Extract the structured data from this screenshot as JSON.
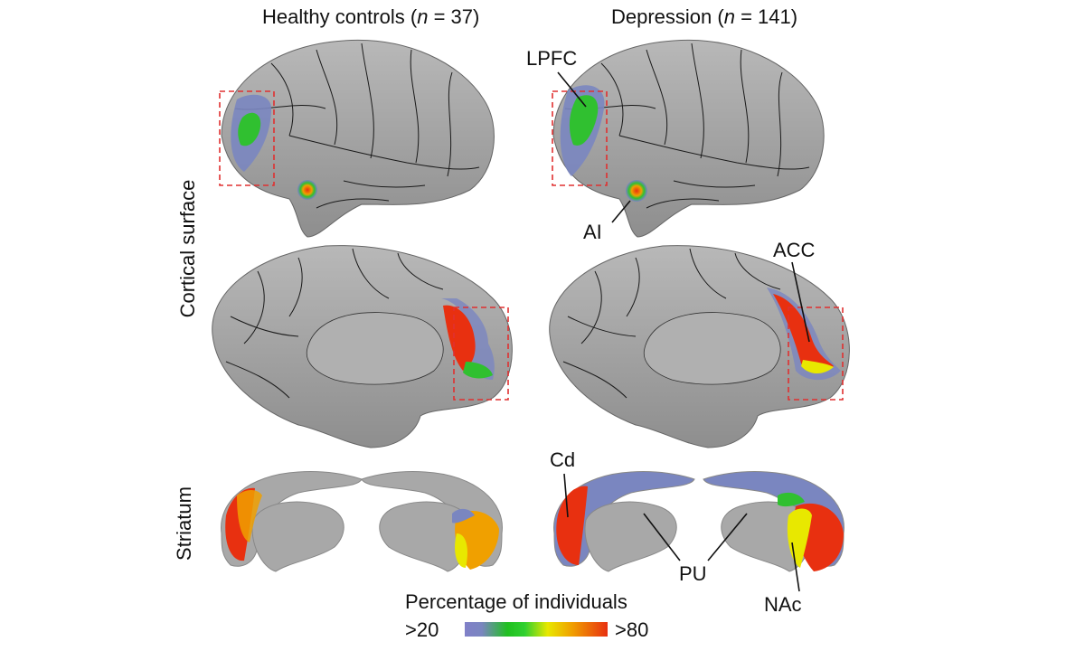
{
  "columns": {
    "left": {
      "label": "Healthy controls",
      "n_prefix": "(",
      "n_symbol": "n",
      "n_value": " = 37)"
    },
    "right": {
      "label": "Depression",
      "n_prefix": "(",
      "n_symbol": "n",
      "n_value": " = 141)"
    }
  },
  "row_labels": {
    "cortical": "Cortical surface",
    "striatum": "Striatum"
  },
  "region_labels": {
    "lpfc": "LPFC",
    "ai": "AI",
    "acc": "ACC",
    "cd": "Cd",
    "pu": "PU",
    "nac": "NAc"
  },
  "legend": {
    "title": "Percentage of individuals",
    "min_label": ">20",
    "max_label": ">80",
    "colors": [
      "#8080c8",
      "#20c020",
      "#e8e800",
      "#f0a000",
      "#e83010"
    ]
  },
  "colors": {
    "brain_surface": "#a8a8a8",
    "parcel_border": "#1a1a1a",
    "highlight_box": "#e03030"
  }
}
